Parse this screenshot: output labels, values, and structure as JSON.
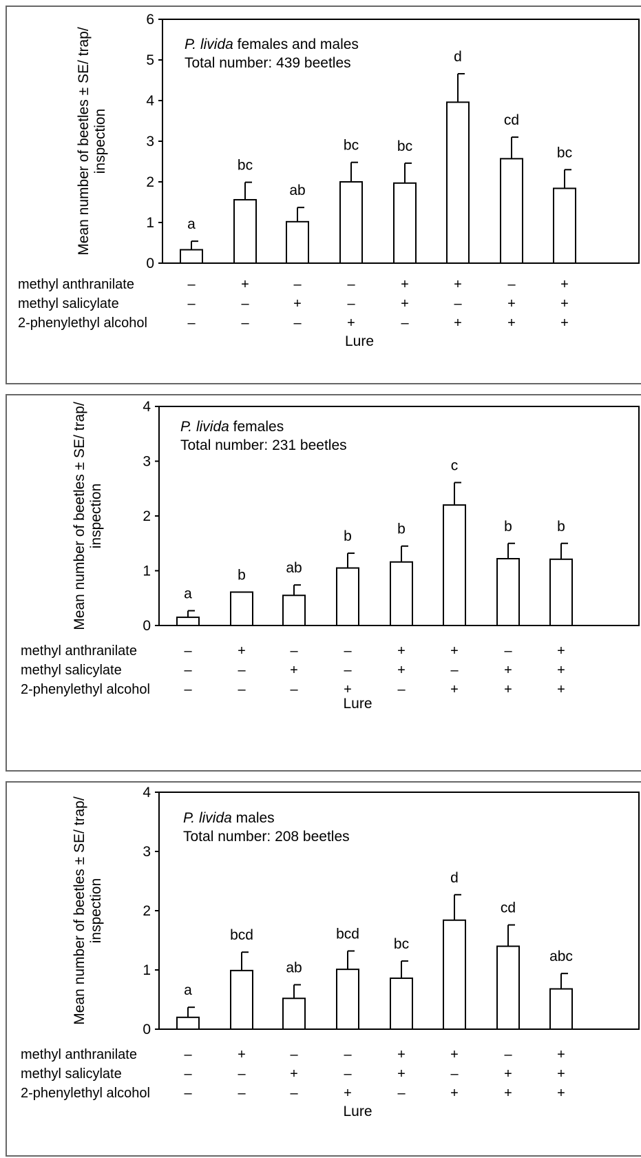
{
  "y_axis_label_line1": "Mean number of beetles ± SE/ trap/",
  "y_axis_label_line2": "inspection",
  "x_axis_label": "Lure",
  "row_labels": [
    "methyl anthranilate",
    "methyl salicylate",
    "2-phenylethyl alcohol"
  ],
  "plus": "+",
  "minus": "–",
  "treatments": [
    [
      false,
      false,
      false
    ],
    [
      true,
      false,
      false
    ],
    [
      false,
      true,
      false
    ],
    [
      false,
      false,
      true
    ],
    [
      true,
      true,
      false
    ],
    [
      true,
      false,
      true
    ],
    [
      false,
      true,
      true
    ],
    [
      true,
      true,
      true
    ]
  ],
  "chart_data": [
    {
      "type": "bar",
      "annotation_species": "P. livida",
      "annotation_rest": " females and males",
      "annotation_total": "Total number: 439 beetles",
      "ylim": [
        0,
        6
      ],
      "yticks": [
        0,
        1,
        2,
        3,
        4,
        5,
        6
      ],
      "values": [
        0.33,
        1.56,
        1.02,
        2.0,
        1.97,
        3.96,
        2.57,
        1.84
      ],
      "errors": [
        0.21,
        0.43,
        0.35,
        0.48,
        0.49,
        0.7,
        0.53,
        0.46
      ],
      "letters": [
        "a",
        "bc",
        "ab",
        "bc",
        "bc",
        "d",
        "cd",
        "bc"
      ]
    },
    {
      "type": "bar",
      "annotation_species": "P. livida",
      "annotation_rest": " females",
      "annotation_total": "Total number: 231 beetles",
      "ylim": [
        0,
        4
      ],
      "yticks": [
        0,
        1,
        2,
        3,
        4
      ],
      "values": [
        0.15,
        0.61,
        0.55,
        1.05,
        1.16,
        2.2,
        1.22,
        1.21
      ],
      "errors": [
        0.12,
        0.0,
        0.19,
        0.27,
        0.29,
        0.41,
        0.28,
        0.29
      ],
      "letters": [
        "a",
        "b",
        "ab",
        "b",
        "b",
        "c",
        "b",
        "b"
      ]
    },
    {
      "type": "bar",
      "annotation_species": "P. livida",
      "annotation_rest": " males",
      "annotation_total": "Total number: 208 beetles",
      "ylim": [
        0,
        4
      ],
      "yticks": [
        0,
        1,
        2,
        3,
        4
      ],
      "values": [
        0.2,
        0.99,
        0.52,
        1.01,
        0.86,
        1.84,
        1.4,
        0.68
      ],
      "errors": [
        0.17,
        0.31,
        0.23,
        0.31,
        0.29,
        0.43,
        0.36,
        0.26
      ],
      "letters": [
        "a",
        "bcd",
        "ab",
        "bcd",
        "bc",
        "d",
        "cd",
        "abc"
      ]
    }
  ]
}
